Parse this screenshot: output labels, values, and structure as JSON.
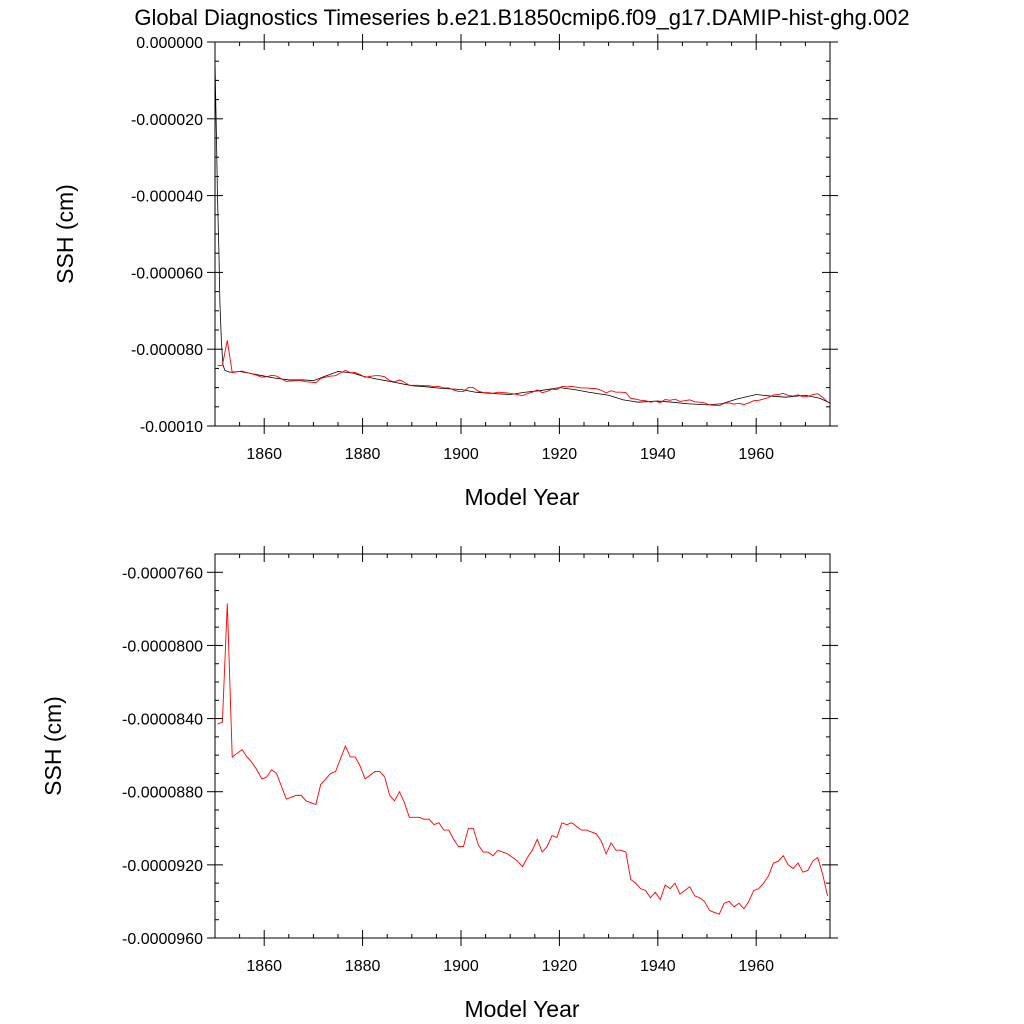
{
  "title": "Global Diagnostics Timeseries b.e21.B1850cmip6.f09_g17.DAMIP-hist-ghg.002",
  "colors": {
    "annual": "#ff0000",
    "monthly": "#000000",
    "axis": "#000000"
  },
  "chart_data": [
    {
      "type": "line",
      "xlabel": "Model Year",
      "ylabel": "SSH (cm)",
      "xlim": [
        1850,
        1975
      ],
      "ylim": [
        -0.0001,
        0.0
      ],
      "xticks": [
        1860,
        1880,
        1900,
        1920,
        1940,
        1960
      ],
      "xtick_labels": [
        "1860",
        "1880",
        "1900",
        "1920",
        "1940",
        "1960"
      ],
      "yticks": [
        0.0,
        -2e-05,
        -4e-05,
        -6e-05,
        -8e-05,
        -0.0001
      ],
      "ytick_labels": [
        "0.000000",
        "-0.000020",
        "-0.000040",
        "-0.000060",
        "-0.000080",
        "-0.00010"
      ],
      "grid": false,
      "series": [
        {
          "style": "black-thin",
          "x": [
            1850.0,
            1850.1,
            1850.3,
            1850.5,
            1850.8,
            1851.0,
            1851.3,
            1851.6,
            1852.0,
            1853.0,
            1855.0,
            1858.0,
            1860.0,
            1862.0,
            1865.0,
            1868.0,
            1870.0,
            1872.0,
            1875.0,
            1878.0,
            1880.0,
            1883.0,
            1886.0,
            1890.0,
            1893.0,
            1896.0,
            1900.0,
            1903.0,
            1906.0,
            1910.0,
            1913.0,
            1916.0,
            1920.0,
            1923.0,
            1926.0,
            1930.0,
            1933.0,
            1936.0,
            1940.0,
            1943.0,
            1946.0,
            1950.0,
            1953.0,
            1956.0,
            1960.0,
            1963.0,
            1966.0,
            1970.0,
            1973.0,
            1975.0
          ],
          "y": [
            -4.5e-06,
            -1.2e-05,
            -2.5e-05,
            -4e-05,
            -5.5e-05,
            -6.8e-05,
            -7.8e-05,
            -8.4e-05,
            -8.55e-05,
            -8.6e-05,
            -8.58e-05,
            -8.65e-05,
            -8.7e-05,
            -8.75e-05,
            -8.8e-05,
            -8.8e-05,
            -8.82e-05,
            -8.72e-05,
            -8.58e-05,
            -8.62e-05,
            -8.7e-05,
            -8.78e-05,
            -8.85e-05,
            -8.95e-05,
            -8.98e-05,
            -9.02e-05,
            -9.05e-05,
            -9.12e-05,
            -9.15e-05,
            -9.18e-05,
            -9.12e-05,
            -9.08e-05,
            -9e-05,
            -9.05e-05,
            -9.12e-05,
            -9.2e-05,
            -9.32e-05,
            -9.38e-05,
            -9.35e-05,
            -9.38e-05,
            -9.42e-05,
            -9.45e-05,
            -9.42e-05,
            -9.3e-05,
            -9.18e-05,
            -9.22e-05,
            -9.25e-05,
            -9.2e-05,
            -9.28e-05,
            -9.4e-05
          ]
        },
        {
          "style": "red-annual",
          "x": [
            1850.5,
            1851.5,
            1852.5,
            1853.5,
            1854.5,
            1855.5,
            1856.5,
            1857.5,
            1858.5,
            1859.5,
            1860.5,
            1861.5,
            1862.5,
            1863.5,
            1864.5,
            1865.5,
            1866.5,
            1867.5,
            1868.5,
            1869.5,
            1870.5,
            1871.5,
            1872.5,
            1873.5,
            1874.5,
            1875.5,
            1876.5,
            1877.5,
            1878.5,
            1879.5,
            1880.5,
            1881.5,
            1882.5,
            1883.5,
            1884.5,
            1885.5,
            1886.5,
            1887.5,
            1888.5,
            1889.5,
            1890.5,
            1891.5,
            1892.5,
            1893.5,
            1894.5,
            1895.5,
            1896.5,
            1897.5,
            1898.5,
            1899.5,
            1900.5,
            1901.5,
            1902.5,
            1903.5,
            1904.5,
            1905.5,
            1906.5,
            1907.5,
            1908.5,
            1909.5,
            1910.5,
            1911.5,
            1912.5,
            1913.5,
            1914.5,
            1915.5,
            1916.5,
            1917.5,
            1918.5,
            1919.5,
            1920.5,
            1921.5,
            1922.5,
            1923.5,
            1924.5,
            1925.5,
            1926.5,
            1927.5,
            1928.5,
            1929.5,
            1930.5,
            1931.5,
            1932.5,
            1933.5,
            1934.5,
            1935.5,
            1936.5,
            1937.5,
            1938.5,
            1939.5,
            1940.5,
            1941.5,
            1942.5,
            1943.5,
            1944.5,
            1945.5,
            1946.5,
            1947.5,
            1948.5,
            1949.5,
            1950.5,
            1951.5,
            1952.5,
            1953.5,
            1954.5,
            1955.5,
            1956.5,
            1957.5,
            1958.5,
            1959.5,
            1960.5,
            1961.5,
            1962.5,
            1963.5,
            1964.5,
            1965.5,
            1966.5,
            1967.5,
            1968.5,
            1969.5,
            1970.5,
            1971.5,
            1972.5,
            1973.5,
            1974.5
          ],
          "y": [
            -8.43e-05,
            -8.42e-05,
            -7.77e-05,
            -8.61e-05,
            -8.59e-05,
            -8.57e-05,
            -8.61e-05,
            -8.64e-05,
            -8.68e-05,
            -8.73e-05,
            -8.72e-05,
            -8.68e-05,
            -8.7e-05,
            -8.77e-05,
            -8.84e-05,
            -8.83e-05,
            -8.82e-05,
            -8.82e-05,
            -8.85e-05,
            -8.86e-05,
            -8.87e-05,
            -8.76e-05,
            -8.73e-05,
            -8.7e-05,
            -8.69e-05,
            -8.62e-05,
            -8.55e-05,
            -8.61e-05,
            -8.61e-05,
            -8.66e-05,
            -8.73e-05,
            -8.71e-05,
            -8.69e-05,
            -8.69e-05,
            -8.72e-05,
            -8.82e-05,
            -8.85e-05,
            -8.8e-05,
            -8.86e-05,
            -8.94e-05,
            -8.94e-05,
            -8.94e-05,
            -8.95e-05,
            -8.95e-05,
            -8.98e-05,
            -8.97e-05,
            -9.01e-05,
            -9.01e-05,
            -9.06e-05,
            -9.1e-05,
            -9.1e-05,
            -9e-05,
            -9e-05,
            -9.09e-05,
            -9.13e-05,
            -9.13e-05,
            -9.15e-05,
            -9.12e-05,
            -9.13e-05,
            -9.14e-05,
            -9.16e-05,
            -9.18e-05,
            -9.21e-05,
            -9.16e-05,
            -9.12e-05,
            -9.06e-05,
            -9.13e-05,
            -9.1e-05,
            -9.04e-05,
            -9.05e-05,
            -8.97e-05,
            -8.98e-05,
            -8.97e-05,
            -8.99e-05,
            -9.01e-05,
            -9.01e-05,
            -9.02e-05,
            -9.03e-05,
            -9.07e-05,
            -9.14e-05,
            -9.08e-05,
            -9.12e-05,
            -9.12e-05,
            -9.13e-05,
            -9.28e-05,
            -9.3e-05,
            -9.33e-05,
            -9.34e-05,
            -9.38e-05,
            -9.35e-05,
            -9.39e-05,
            -9.31e-05,
            -9.33e-05,
            -9.3e-05,
            -9.36e-05,
            -9.34e-05,
            -9.32e-05,
            -9.37e-05,
            -9.38e-05,
            -9.4e-05,
            -9.45e-05,
            -9.46e-05,
            -9.47e-05,
            -9.41e-05,
            -9.4e-05,
            -9.43e-05,
            -9.41e-05,
            -9.44e-05,
            -9.4e-05,
            -9.34e-05,
            -9.33e-05,
            -9.3e-05,
            -9.26e-05,
            -9.19e-05,
            -9.18e-05,
            -9.15e-05,
            -9.2e-05,
            -9.22e-05,
            -9.19e-05,
            -9.24e-05,
            -9.23e-05,
            -9.18e-05,
            -9.16e-05,
            -9.25e-05,
            -9.37e-05
          ]
        }
      ]
    },
    {
      "type": "line",
      "xlabel": "Model Year",
      "ylabel": "SSH (cm)",
      "xlim": [
        1850,
        1975
      ],
      "ylim": [
        -9.6e-05,
        -7.5e-05
      ],
      "xticks": [
        1860,
        1880,
        1900,
        1920,
        1940,
        1960
      ],
      "xtick_labels": [
        "1860",
        "1880",
        "1900",
        "1920",
        "1940",
        "1960"
      ],
      "yticks": [
        -7.6e-05,
        -8e-05,
        -8.4e-05,
        -8.8e-05,
        -9.2e-05,
        -9.6e-05
      ],
      "ytick_labels": [
        "-0.0000760",
        "-0.0000800",
        "-0.0000840",
        "-0.0000880",
        "-0.0000920",
        "-0.0000960"
      ],
      "grid": false,
      "series": [
        {
          "style": "red-annual",
          "x": [
            1850.5,
            1851.5,
            1852.5,
            1853.5,
            1854.5,
            1855.5,
            1856.5,
            1857.5,
            1858.5,
            1859.5,
            1860.5,
            1861.5,
            1862.5,
            1863.5,
            1864.5,
            1865.5,
            1866.5,
            1867.5,
            1868.5,
            1869.5,
            1870.5,
            1871.5,
            1872.5,
            1873.5,
            1874.5,
            1875.5,
            1876.5,
            1877.5,
            1878.5,
            1879.5,
            1880.5,
            1881.5,
            1882.5,
            1883.5,
            1884.5,
            1885.5,
            1886.5,
            1887.5,
            1888.5,
            1889.5,
            1890.5,
            1891.5,
            1892.5,
            1893.5,
            1894.5,
            1895.5,
            1896.5,
            1897.5,
            1898.5,
            1899.5,
            1900.5,
            1901.5,
            1902.5,
            1903.5,
            1904.5,
            1905.5,
            1906.5,
            1907.5,
            1908.5,
            1909.5,
            1910.5,
            1911.5,
            1912.5,
            1913.5,
            1914.5,
            1915.5,
            1916.5,
            1917.5,
            1918.5,
            1919.5,
            1920.5,
            1921.5,
            1922.5,
            1923.5,
            1924.5,
            1925.5,
            1926.5,
            1927.5,
            1928.5,
            1929.5,
            1930.5,
            1931.5,
            1932.5,
            1933.5,
            1934.5,
            1935.5,
            1936.5,
            1937.5,
            1938.5,
            1939.5,
            1940.5,
            1941.5,
            1942.5,
            1943.5,
            1944.5,
            1945.5,
            1946.5,
            1947.5,
            1948.5,
            1949.5,
            1950.5,
            1951.5,
            1952.5,
            1953.5,
            1954.5,
            1955.5,
            1956.5,
            1957.5,
            1958.5,
            1959.5,
            1960.5,
            1961.5,
            1962.5,
            1963.5,
            1964.5,
            1965.5,
            1966.5,
            1967.5,
            1968.5,
            1969.5,
            1970.5,
            1971.5,
            1972.5,
            1973.5,
            1974.5
          ],
          "y": [
            -8.43e-05,
            -8.42e-05,
            -7.77e-05,
            -8.61e-05,
            -8.59e-05,
            -8.57e-05,
            -8.61e-05,
            -8.64e-05,
            -8.68e-05,
            -8.73e-05,
            -8.72e-05,
            -8.68e-05,
            -8.7e-05,
            -8.77e-05,
            -8.84e-05,
            -8.83e-05,
            -8.82e-05,
            -8.82e-05,
            -8.85e-05,
            -8.86e-05,
            -8.87e-05,
            -8.76e-05,
            -8.73e-05,
            -8.7e-05,
            -8.69e-05,
            -8.62e-05,
            -8.55e-05,
            -8.61e-05,
            -8.61e-05,
            -8.66e-05,
            -8.73e-05,
            -8.71e-05,
            -8.69e-05,
            -8.69e-05,
            -8.72e-05,
            -8.82e-05,
            -8.85e-05,
            -8.8e-05,
            -8.86e-05,
            -8.94e-05,
            -8.94e-05,
            -8.94e-05,
            -8.95e-05,
            -8.95e-05,
            -8.98e-05,
            -8.97e-05,
            -9.01e-05,
            -9.01e-05,
            -9.06e-05,
            -9.1e-05,
            -9.1e-05,
            -9e-05,
            -9e-05,
            -9.09e-05,
            -9.13e-05,
            -9.13e-05,
            -9.15e-05,
            -9.12e-05,
            -9.13e-05,
            -9.14e-05,
            -9.16e-05,
            -9.18e-05,
            -9.21e-05,
            -9.16e-05,
            -9.12e-05,
            -9.06e-05,
            -9.13e-05,
            -9.1e-05,
            -9.04e-05,
            -9.05e-05,
            -8.97e-05,
            -8.98e-05,
            -8.97e-05,
            -8.99e-05,
            -9.01e-05,
            -9.01e-05,
            -9.02e-05,
            -9.03e-05,
            -9.07e-05,
            -9.14e-05,
            -9.08e-05,
            -9.12e-05,
            -9.12e-05,
            -9.13e-05,
            -9.28e-05,
            -9.3e-05,
            -9.33e-05,
            -9.34e-05,
            -9.38e-05,
            -9.35e-05,
            -9.39e-05,
            -9.31e-05,
            -9.33e-05,
            -9.3e-05,
            -9.36e-05,
            -9.34e-05,
            -9.32e-05,
            -9.37e-05,
            -9.38e-05,
            -9.4e-05,
            -9.45e-05,
            -9.46e-05,
            -9.47e-05,
            -9.41e-05,
            -9.4e-05,
            -9.43e-05,
            -9.41e-05,
            -9.44e-05,
            -9.4e-05,
            -9.34e-05,
            -9.33e-05,
            -9.3e-05,
            -9.26e-05,
            -9.19e-05,
            -9.18e-05,
            -9.15e-05,
            -9.2e-05,
            -9.22e-05,
            -9.19e-05,
            -9.24e-05,
            -9.23e-05,
            -9.18e-05,
            -9.16e-05,
            -9.25e-05,
            -9.37e-05
          ]
        }
      ]
    }
  ]
}
